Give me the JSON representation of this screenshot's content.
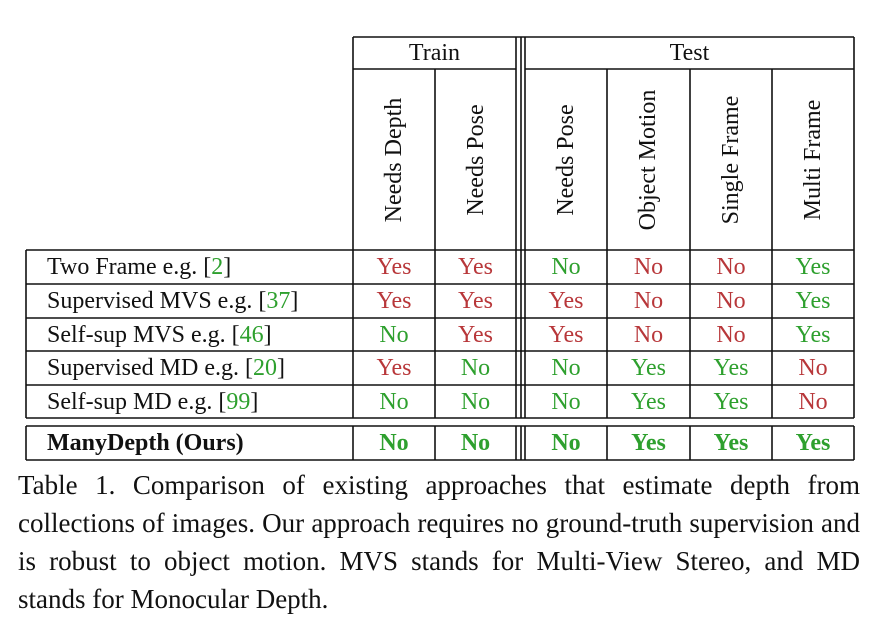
{
  "colors": {
    "yes_red": "#b8373a",
    "no_green": "#2ea02e",
    "yes_green": "#2ea02e",
    "no_red": "#b8373a",
    "cite": "#2ea02e"
  },
  "groups": {
    "train": "Train",
    "test": "Test"
  },
  "columns": [
    "Needs Depth",
    "Needs Pose",
    "Needs Pose",
    "Object Motion",
    "Single Frame",
    "Multi Frame"
  ],
  "rows": [
    {
      "label": "Two Frame e.g. [",
      "cite": "2",
      "close": "]",
      "cells": [
        {
          "v": "Yes",
          "c": "red"
        },
        {
          "v": "Yes",
          "c": "red"
        },
        {
          "v": "No",
          "c": "green"
        },
        {
          "v": "No",
          "c": "red"
        },
        {
          "v": "No",
          "c": "red"
        },
        {
          "v": "Yes",
          "c": "green"
        }
      ]
    },
    {
      "label": "Supervised MVS e.g. [",
      "cite": "37",
      "close": "]",
      "cells": [
        {
          "v": "Yes",
          "c": "red"
        },
        {
          "v": "Yes",
          "c": "red"
        },
        {
          "v": "Yes",
          "c": "red"
        },
        {
          "v": "No",
          "c": "red"
        },
        {
          "v": "No",
          "c": "red"
        },
        {
          "v": "Yes",
          "c": "green"
        }
      ]
    },
    {
      "label": "Self-sup MVS e.g. [",
      "cite": "46",
      "close": "]",
      "cells": [
        {
          "v": "No",
          "c": "green"
        },
        {
          "v": "Yes",
          "c": "red"
        },
        {
          "v": "Yes",
          "c": "red"
        },
        {
          "v": "No",
          "c": "red"
        },
        {
          "v": "No",
          "c": "red"
        },
        {
          "v": "Yes",
          "c": "green"
        }
      ]
    },
    {
      "label": "Supervised MD e.g. [",
      "cite": "20",
      "close": "]",
      "cells": [
        {
          "v": "Yes",
          "c": "red"
        },
        {
          "v": "No",
          "c": "green"
        },
        {
          "v": "No",
          "c": "green"
        },
        {
          "v": "Yes",
          "c": "green"
        },
        {
          "v": "Yes",
          "c": "green"
        },
        {
          "v": "No",
          "c": "red"
        }
      ]
    },
    {
      "label": "Self-sup MD e.g. [",
      "cite": "99",
      "close": "]",
      "cells": [
        {
          "v": "No",
          "c": "green"
        },
        {
          "v": "No",
          "c": "green"
        },
        {
          "v": "No",
          "c": "green"
        },
        {
          "v": "Yes",
          "c": "green"
        },
        {
          "v": "Yes",
          "c": "green"
        },
        {
          "v": "No",
          "c": "red"
        }
      ]
    }
  ],
  "ours": {
    "label": "ManyDepth (Ours)",
    "cells": [
      {
        "v": "No",
        "c": "green"
      },
      {
        "v": "No",
        "c": "green"
      },
      {
        "v": "No",
        "c": "green"
      },
      {
        "v": "Yes",
        "c": "green"
      },
      {
        "v": "Yes",
        "c": "green"
      },
      {
        "v": "Yes",
        "c": "green"
      }
    ]
  },
  "caption": "Table 1. Comparison of existing approaches that estimate depth from collections of images.  Our approach requires no ground-truth supervision and is robust to object motion. MVS stands for Multi-View Stereo, and MD stands for Monocular Depth."
}
